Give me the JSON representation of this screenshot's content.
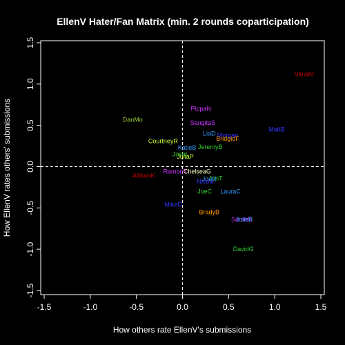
{
  "chart_data": {
    "type": "scatter",
    "title": "EllenV Hater/Fan Matrix (min. 2 rounds coparticipation)",
    "xlabel": "How others rate EllenV's submissions",
    "ylabel": "How EllenV rates others' submissions",
    "xlim": [
      -1.5,
      1.5
    ],
    "ylim": [
      -1.5,
      1.5
    ],
    "x_ticks": [
      "-1.5",
      "-1.0",
      "-0.5",
      "0.0",
      "0.5",
      "1.0",
      "1.5"
    ],
    "y_ticks": [
      "-1.5",
      "-1.0",
      "-0.5",
      "0.0",
      "0.5",
      "1.0",
      "1.5"
    ],
    "reference_lines": [
      {
        "axis": "x",
        "value": 0
      },
      {
        "axis": "y",
        "value": 0
      }
    ],
    "grid": false,
    "background": "#000000",
    "foreground": "#ffffff",
    "points": [
      {
        "label": "VimalV",
        "x": 1.32,
        "y": 1.12,
        "color": "#cc0000"
      },
      {
        "label": "PippaN",
        "x": 0.2,
        "y": 0.7,
        "color": "#cc33ff"
      },
      {
        "label": "DanMo",
        "x": -0.54,
        "y": 0.57,
        "color": "#99cc33"
      },
      {
        "label": "SangitaS",
        "x": 0.22,
        "y": 0.53,
        "color": "#cc33ff"
      },
      {
        "label": "MattB",
        "x": 1.02,
        "y": 0.45,
        "color": "#3333ff"
      },
      {
        "label": "LiaD",
        "x": 0.29,
        "y": 0.4,
        "color": "#3399ff"
      },
      {
        "label": "Morgan",
        "x": 0.49,
        "y": 0.38,
        "color": "#3333ff"
      },
      {
        "label": "BridgidF",
        "x": 0.49,
        "y": 0.34,
        "color": "#ff9900"
      },
      {
        "label": "CourtneyR",
        "x": -0.21,
        "y": 0.31,
        "color": "#ccff33"
      },
      {
        "label": "JeremyB",
        "x": 0.3,
        "y": 0.24,
        "color": "#33cc33"
      },
      {
        "label": "KatieB",
        "x": 0.05,
        "y": 0.23,
        "color": "#3399ff"
      },
      {
        "label": "JoshL",
        "x": -0.02,
        "y": 0.15,
        "color": "#33cc33"
      },
      {
        "label": "JuliaP",
        "x": 0.03,
        "y": 0.12,
        "color": "#ccff33"
      },
      {
        "label": "RamonT",
        "x": -0.08,
        "y": -0.06,
        "color": "#cc33ff"
      },
      {
        "label": "ChelseaG",
        "x": 0.16,
        "y": -0.06,
        "color": "#ffffcc"
      },
      {
        "label": "AllisonK",
        "x": -0.42,
        "y": -0.11,
        "color": "#cc0000"
      },
      {
        "label": "JonT",
        "x": 0.36,
        "y": -0.14,
        "color": "#33cc33"
      },
      {
        "label": "JonR",
        "x": 0.29,
        "y": -0.15,
        "color": "#3399ff"
      },
      {
        "label": "Nicole",
        "x": 0.25,
        "y": -0.18,
        "color": "#3333ff"
      },
      {
        "label": "JoeC",
        "x": 0.24,
        "y": -0.3,
        "color": "#33cc33"
      },
      {
        "label": "LauraC",
        "x": 0.52,
        "y": -0.3,
        "color": "#3399ff"
      },
      {
        "label": "MikeD",
        "x": -0.1,
        "y": -0.46,
        "color": "#3333ff"
      },
      {
        "label": "BradyB",
        "x": 0.29,
        "y": -0.55,
        "color": "#ff9900"
      },
      {
        "label": "SarahB",
        "x": 0.64,
        "y": -0.64,
        "color": "#cc33ff"
      },
      {
        "label": "JulieB",
        "x": 0.67,
        "y": -0.64,
        "color": "#3399ff"
      },
      {
        "label": "DavidG",
        "x": 0.66,
        "y": -1.0,
        "color": "#33cc33"
      }
    ]
  }
}
